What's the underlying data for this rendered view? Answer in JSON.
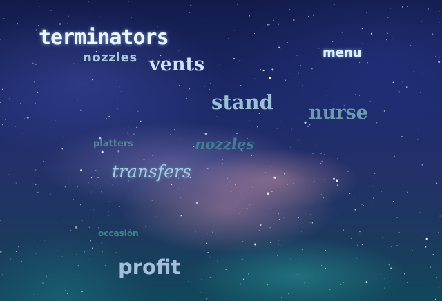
{
  "background": {
    "description_colors": {
      "sky_top": "#131b4a",
      "sky_mid": "#24306a",
      "sky_bottom": "#12485a",
      "milky_way_pink": "#c48caa",
      "milky_way_teal": "#2896a0"
    }
  },
  "words": {
    "terminators": "terminators",
    "nozzles_1": "nozzles",
    "vents": "vents",
    "menu": "menu",
    "stand": "stand",
    "nurse": "nurse",
    "platters": "platters",
    "nozzles_2": "nozzles",
    "transfers": "transfers",
    "occasion": "occasion",
    "profit": "profit"
  }
}
